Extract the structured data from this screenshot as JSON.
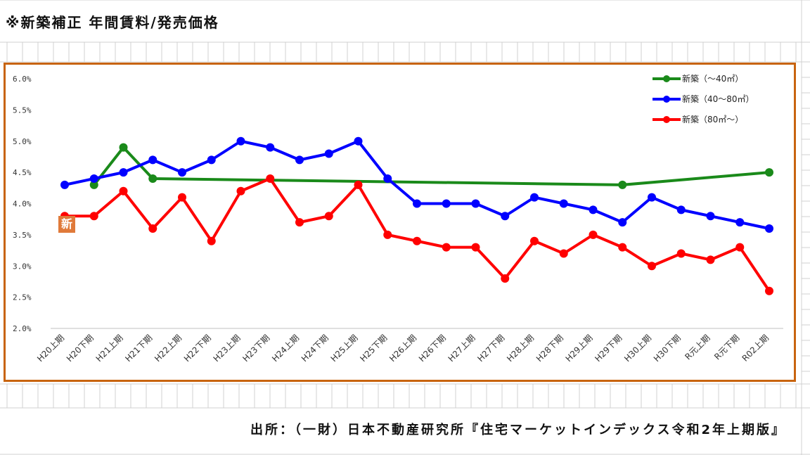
{
  "header": {
    "title": "※新築補正 年間賃料/発売価格"
  },
  "source_note": "出所：（一財）日本不動産研究所『住宅マーケットインデックス令和2年上期版』",
  "badge": {
    "text": "新",
    "color": "#e07a3a"
  },
  "colors": {
    "frame": "#c8640f",
    "gridline": "#d9d9d9"
  },
  "chart_data": {
    "type": "line",
    "x": [
      "H20上期",
      "H20下期",
      "H21上期",
      "H21下期",
      "H22上期",
      "H22下期",
      "H23上期",
      "H23下期",
      "H24上期",
      "H24下期",
      "H25上期",
      "H25下期",
      "H26上期",
      "H26下期",
      "H27上期",
      "H27下期",
      "H28上期",
      "H28下期",
      "H29上期",
      "H29下期",
      "H30上期",
      "H30下期",
      "R元上期",
      "R元下期",
      "R02上期"
    ],
    "ylim": [
      2.0,
      6.0
    ],
    "yticks": [
      {
        "value": 2.0,
        "label": "2.0%"
      },
      {
        "value": 2.5,
        "label": "2.5%"
      },
      {
        "value": 3.0,
        "label": "3.0%"
      },
      {
        "value": 3.5,
        "label": "3.5%"
      },
      {
        "value": 4.0,
        "label": "4.0%"
      },
      {
        "value": 4.5,
        "label": "4.5%"
      },
      {
        "value": 5.0,
        "label": "5.0%"
      },
      {
        "value": 5.5,
        "label": "5.5%"
      },
      {
        "value": 6.0,
        "label": "6.0%"
      }
    ],
    "title": "",
    "xlabel": "",
    "ylabel": "",
    "grid": "horizontal-baseline-only",
    "legend_position": "top-right",
    "series": [
      {
        "name": "新築（～40㎡）",
        "color": "#1a8a1a",
        "points": [
          [
            1,
            4.3
          ],
          [
            2,
            4.9
          ],
          [
            3,
            4.4
          ],
          [
            19,
            4.3
          ],
          [
            24,
            4.5
          ]
        ]
      },
      {
        "name": "新築（40～80㎡）",
        "color": "#0000ff",
        "points": [
          [
            0,
            4.3
          ],
          [
            1,
            4.4
          ],
          [
            2,
            4.5
          ],
          [
            3,
            4.7
          ],
          [
            4,
            4.5
          ],
          [
            5,
            4.7
          ],
          [
            6,
            5.0
          ],
          [
            7,
            4.9
          ],
          [
            8,
            4.7
          ],
          [
            9,
            4.8
          ],
          [
            10,
            5.0
          ],
          [
            11,
            4.4
          ],
          [
            12,
            4.0
          ],
          [
            13,
            4.0
          ],
          [
            14,
            4.0
          ],
          [
            15,
            3.8
          ],
          [
            16,
            4.1
          ],
          [
            17,
            4.0
          ],
          [
            18,
            3.9
          ],
          [
            19,
            3.7
          ],
          [
            20,
            4.1
          ],
          [
            21,
            3.9
          ],
          [
            22,
            3.8
          ],
          [
            23,
            3.7
          ],
          [
            24,
            3.6
          ]
        ]
      },
      {
        "name": "新築（80㎡～）",
        "color": "#ff0000",
        "points": [
          [
            0,
            3.8
          ],
          [
            1,
            3.8
          ],
          [
            2,
            4.2
          ],
          [
            3,
            3.6
          ],
          [
            4,
            4.1
          ],
          [
            5,
            3.4
          ],
          [
            6,
            4.2
          ],
          [
            7,
            4.4
          ],
          [
            8,
            3.7
          ],
          [
            9,
            3.8
          ],
          [
            10,
            4.3
          ],
          [
            11,
            3.5
          ],
          [
            12,
            3.4
          ],
          [
            13,
            3.3
          ],
          [
            14,
            3.3
          ],
          [
            15,
            2.8
          ],
          [
            16,
            3.4
          ],
          [
            17,
            3.2
          ],
          [
            18,
            3.5
          ],
          [
            19,
            3.3
          ],
          [
            20,
            3.0
          ],
          [
            21,
            3.2
          ],
          [
            22,
            3.1
          ],
          [
            23,
            3.3
          ],
          [
            24,
            2.6
          ]
        ]
      }
    ]
  }
}
